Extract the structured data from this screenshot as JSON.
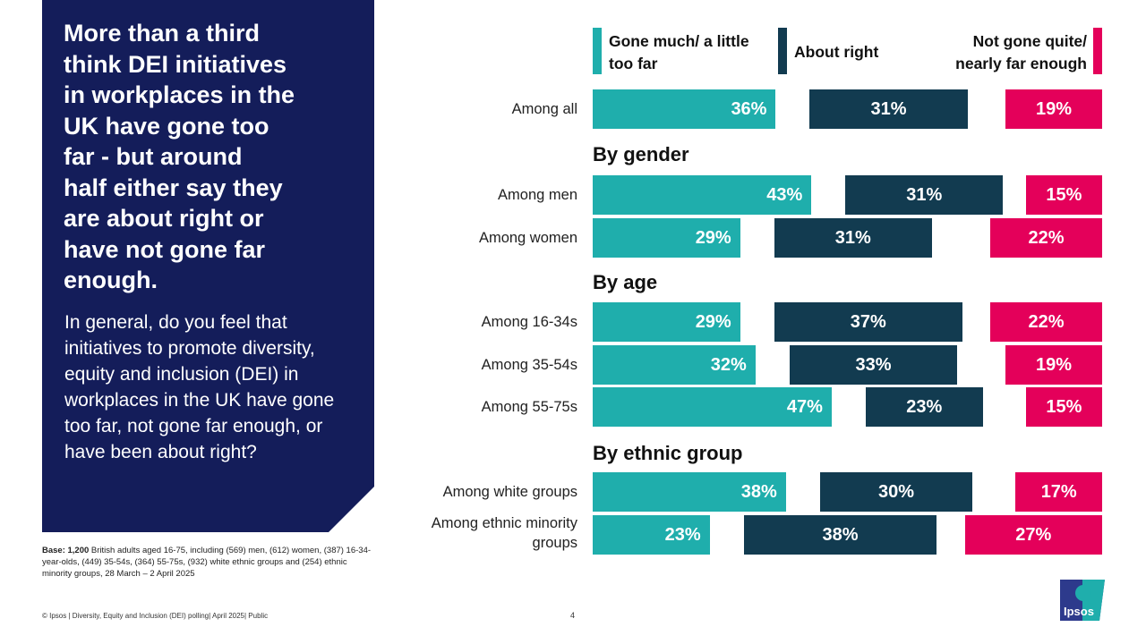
{
  "left_panel": {
    "headline": "More than a third\nthink DEI initiatives\nin workplaces in the\nUK have gone too\nfar  - but around\nhalf either say they\nare about right or\nhave not gone far\nenough.",
    "question": "In general, do you feel that initiatives to promote diversity, equity and inclusion (DEI) in workplaces in the UK have gone too far, not gone far enough, or have been about right?"
  },
  "base_note": {
    "label": "Base: 1,200",
    "text": " British adults aged 16-75, including (569) men, (612) women, (387) 16-34-year-olds, (449) 35-54s, (364) 55-75s, (932) white ethnic groups and (254) ethnic minority groups, 28 March – 2 April 2025"
  },
  "footer": {
    "text": "© Ipsos | Diversity, Equity and Inclusion (DEI) polling| April 2025| Public",
    "page_number": "4"
  },
  "logo": {
    "text": "Ipsos"
  },
  "colors": {
    "teal": "#1faeac",
    "dark": "#123b50",
    "pink": "#e4005a",
    "navy": "#141d5a"
  },
  "chart_data": {
    "type": "bar",
    "orientation": "horizontal",
    "title": "More than a third think DEI initiatives in workplaces in the UK have gone too far",
    "series": [
      {
        "name": "Gone much/ a little too far",
        "color": "#1faeac",
        "values": [
          36,
          43,
          29,
          29,
          32,
          47,
          38,
          23
        ]
      },
      {
        "name": "About right",
        "color": "#123b50",
        "values": [
          31,
          31,
          31,
          37,
          33,
          23,
          30,
          38
        ]
      },
      {
        "name": "Not gone quite/ nearly far enough",
        "color": "#e4005a",
        "values": [
          19,
          15,
          22,
          22,
          19,
          15,
          17,
          27
        ]
      }
    ],
    "categories": [
      "Among all",
      "Among men",
      "Among women",
      "Among 16-34s",
      "Among 35-54s",
      "Among 55-75s",
      "Among white groups",
      "Among ethnic minority groups"
    ],
    "sections": [
      {
        "title": "By gender"
      },
      {
        "title": "By age"
      },
      {
        "title": "By ethnic group"
      }
    ],
    "unit": "%",
    "legend_position": "top"
  }
}
